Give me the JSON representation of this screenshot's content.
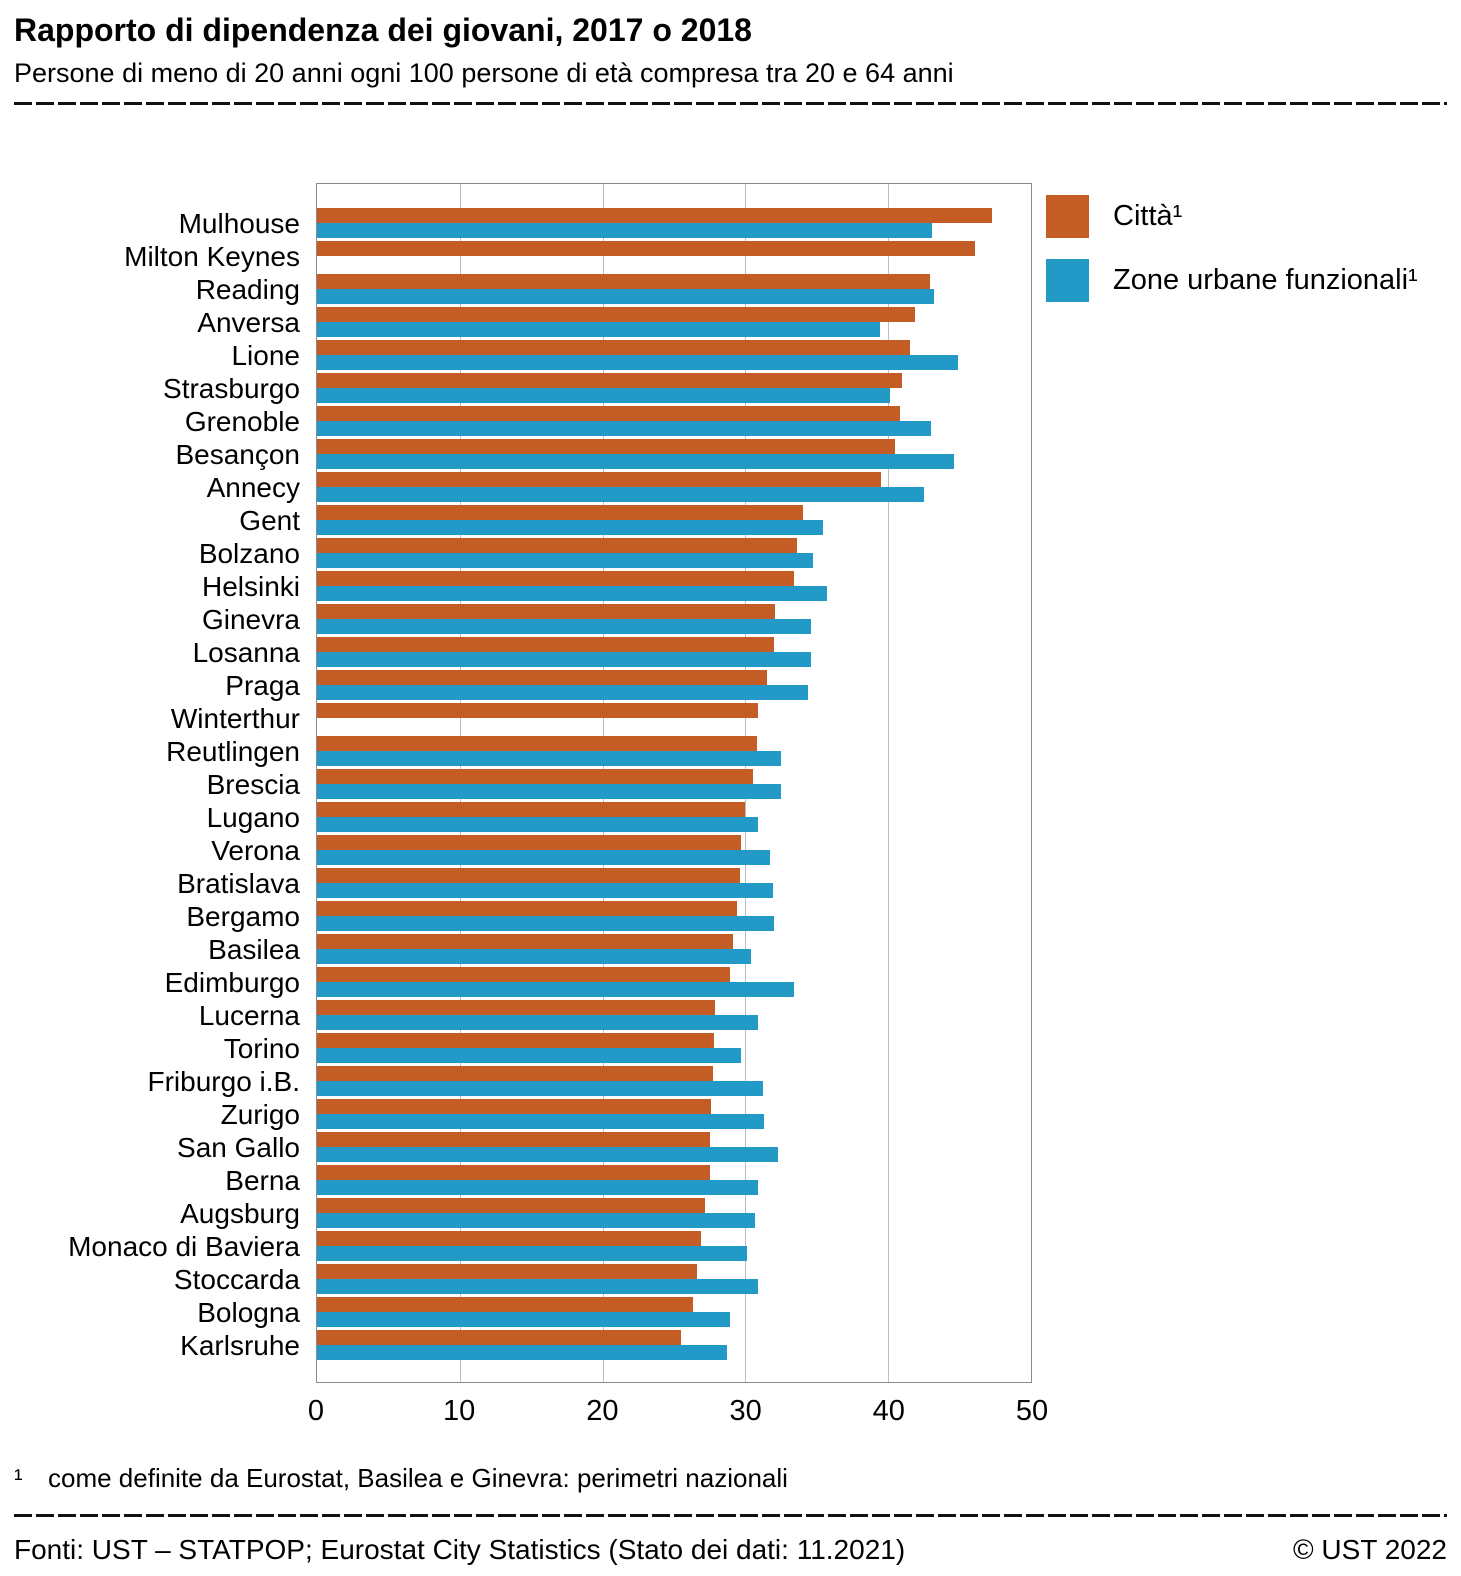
{
  "header": {
    "title": "Rapporto di dipendenza dei giovani, 2017 o 2018",
    "subtitle": "Persone di meno di 20 anni ogni 100 persone di età compresa tra 20 e 64 anni"
  },
  "chart_data": {
    "type": "bar",
    "orientation": "horizontal",
    "title": "Rapporto di dipendenza dei giovani, 2017 o 2018",
    "xlabel": "",
    "ylabel": "",
    "xlim": [
      0,
      50
    ],
    "ticks": [
      0,
      10,
      20,
      30,
      40,
      50
    ],
    "grid": "vertical",
    "legend_position": "top-right",
    "categories": [
      "Mulhouse",
      "Milton Keynes",
      "Reading",
      "Anversa",
      "Lione",
      "Strasburgo",
      "Grenoble",
      "Besançon",
      "Annecy",
      "Gent",
      "Bolzano",
      "Helsinki",
      "Ginevra",
      "Losanna",
      "Praga",
      "Winterthur",
      "Reutlingen",
      "Brescia",
      "Lugano",
      "Verona",
      "Bratislava",
      "Bergamo",
      "Basilea",
      "Edimburgo",
      "Lucerna",
      "Torino",
      "Friburgo i.B.",
      "Zurigo",
      "San Gallo",
      "Berna",
      "Augsburg",
      "Monaco di Baviera",
      "Stoccarda",
      "Bologna",
      "Karlsruhe"
    ],
    "series": [
      {
        "name": "Città¹",
        "color": "#c45c26",
        "values": [
          47.3,
          46.1,
          42.9,
          41.9,
          41.5,
          41.0,
          40.8,
          40.5,
          39.5,
          34.0,
          33.6,
          33.4,
          32.1,
          32.0,
          31.5,
          30.9,
          30.8,
          30.5,
          30.0,
          29.7,
          29.6,
          29.4,
          29.1,
          28.9,
          27.9,
          27.8,
          27.7,
          27.6,
          27.5,
          27.5,
          27.2,
          26.9,
          26.6,
          26.3,
          25.5
        ]
      },
      {
        "name": "Zone urbane funzionali¹",
        "color": "#2399c7",
        "values": [
          43.1,
          null,
          43.2,
          39.4,
          44.9,
          40.1,
          43.0,
          44.6,
          42.5,
          35.4,
          34.7,
          35.7,
          34.6,
          34.6,
          34.4,
          null,
          32.5,
          32.5,
          30.9,
          31.7,
          31.9,
          32.0,
          30.4,
          33.4,
          30.9,
          29.7,
          31.2,
          31.3,
          32.3,
          30.9,
          30.7,
          30.1,
          30.9,
          28.9,
          28.7
        ]
      }
    ]
  },
  "footnote": {
    "marker": "¹",
    "text": "come definite da Eurostat, Basilea e Ginevra: perimetri nazionali"
  },
  "footer": {
    "sources": "Fonti: UST – STATPOP; Eurostat City Statistics (Stato dei dati: 11.2021)",
    "copyright": "© UST 2022"
  }
}
